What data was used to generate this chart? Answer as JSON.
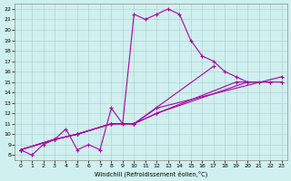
{
  "xlabel": "Windchill (Refroidissement éolien,°C)",
  "background_color": "#cff0ee",
  "line_color": "#aa00aa",
  "xlim": [
    -0.5,
    23.5
  ],
  "ylim": [
    7.5,
    22.5
  ],
  "xticks": [
    0,
    1,
    2,
    3,
    4,
    5,
    6,
    7,
    8,
    9,
    10,
    11,
    12,
    13,
    14,
    15,
    16,
    17,
    18,
    19,
    20,
    21,
    22,
    23
  ],
  "yticks": [
    8,
    9,
    10,
    11,
    12,
    13,
    14,
    15,
    16,
    17,
    18,
    19,
    20,
    21,
    22
  ],
  "main_line": {
    "x": [
      0,
      1,
      2,
      3,
      4,
      5,
      6,
      7,
      8,
      9,
      10,
      11,
      12,
      13,
      14,
      15,
      16,
      17,
      18,
      19,
      20,
      21
    ],
    "y": [
      8.5,
      8.0,
      9.0,
      9.5,
      10.5,
      8.5,
      9.0,
      8.5,
      12.5,
      11.0,
      21.5,
      21.0,
      21.5,
      22.0,
      21.5,
      19.0,
      17.5,
      17.0,
      16.0,
      15.5,
      15.0,
      15.0
    ]
  },
  "straight_lines": [
    {
      "x": [
        0,
        3,
        5,
        8,
        10,
        12,
        19,
        22
      ],
      "y": [
        8.5,
        9.5,
        10.0,
        11.0,
        11.0,
        12.0,
        15.0,
        15.0
      ]
    },
    {
      "x": [
        0,
        3,
        5,
        8,
        10,
        12,
        20,
        23
      ],
      "y": [
        8.5,
        9.5,
        10.0,
        11.0,
        11.0,
        12.0,
        15.0,
        15.0
      ]
    },
    {
      "x": [
        0,
        3,
        5,
        8,
        10,
        12,
        23
      ],
      "y": [
        8.5,
        9.5,
        10.0,
        11.0,
        11.0,
        12.5,
        15.5
      ]
    },
    {
      "x": [
        0,
        3,
        5,
        8,
        10,
        17
      ],
      "y": [
        8.5,
        9.5,
        10.0,
        11.0,
        11.0,
        16.5
      ]
    }
  ]
}
